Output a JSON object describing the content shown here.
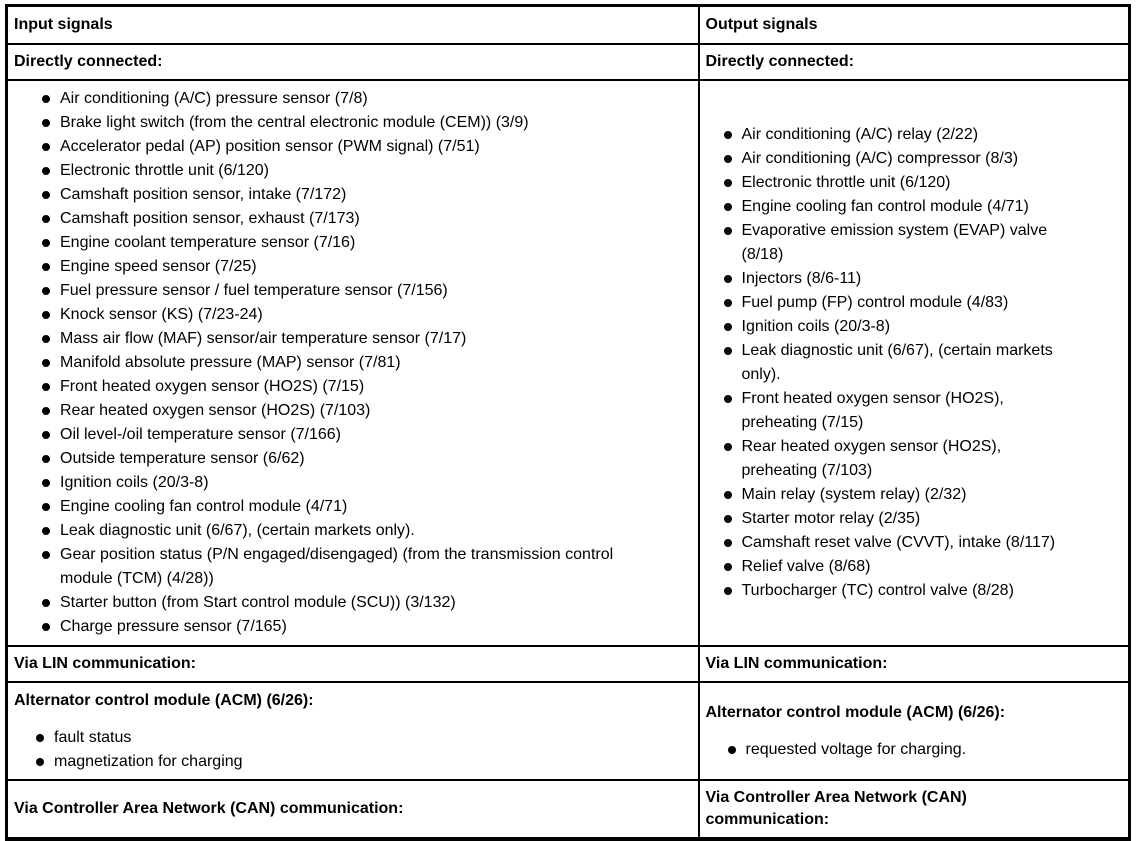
{
  "colors": {
    "background": "#ffffff",
    "text": "#000000",
    "border": "#000000"
  },
  "left": {
    "header": "Input signals",
    "direct_label": "Directly connected:",
    "direct_items": [
      "Air conditioning (A/C) pressure sensor (7/8)",
      "Brake light switch (from the central electronic module (CEM)) (3/9)",
      "Accelerator pedal (AP) position sensor (PWM signal) (7/51)",
      "Electronic throttle unit (6/120)",
      "Camshaft position sensor, intake (7/172)",
      "Camshaft position sensor, exhaust (7/173)",
      "Engine coolant temperature sensor (7/16)",
      "Engine speed sensor (7/25)",
      "Fuel pressure sensor / fuel temperature sensor (7/156)",
      "Knock sensor (KS) (7/23-24)",
      "Mass air flow (MAF) sensor/air temperature sensor (7/17)",
      "Manifold absolute pressure (MAP) sensor (7/81)",
      "Front heated oxygen sensor (HO2S) (7/15)",
      "Rear heated oxygen sensor (HO2S) (7/103)",
      "Oil level-/oil temperature sensor (7/166)",
      "Outside temperature sensor (6/62)",
      "Ignition coils (20/3-8)",
      "Engine cooling fan control module (4/71)",
      "Leak diagnostic unit (6/67), (certain markets only).",
      "Gear position status (P/N engaged/disengaged) (from the transmission control\nmodule (TCM) (4/28))",
      "Starter button (from Start control module (SCU)) (3/132)",
      "Charge pressure sensor (7/165)"
    ],
    "lin_label": "Via LIN communication:",
    "acm_heading": "Alternator control module (ACM) (6/26):",
    "acm_items": [
      "fault status",
      "magnetization for charging"
    ],
    "can_label": "Via Controller Area Network (CAN) communication:"
  },
  "right": {
    "header": "Output signals",
    "direct_label": "Directly connected:",
    "direct_items": [
      "Air conditioning (A/C) relay (2/22)",
      "Air conditioning (A/C) compressor (8/3)",
      "Electronic throttle unit (6/120)",
      "Engine cooling fan control module (4/71)",
      "Evaporative emission system (EVAP) valve\n(8/18)",
      "Injectors (8/6-11)",
      "Fuel pump (FP) control module (4/83)",
      "Ignition coils (20/3-8)",
      "Leak diagnostic unit (6/67), (certain markets\nonly).",
      "Front heated oxygen sensor (HO2S),\npreheating (7/15)",
      "Rear heated oxygen sensor (HO2S),\npreheating (7/103)",
      "Main relay (system relay) (2/32)",
      "Starter motor relay (2/35)",
      "Camshaft reset valve (CVVT), intake (8/117)",
      "Relief valve (8/68)",
      "Turbocharger (TC) control valve (8/28)"
    ],
    "lin_label": "Via LIN communication:",
    "acm_heading": "Alternator control module (ACM) (6/26):",
    "acm_items": [
      "requested voltage for charging."
    ],
    "can_label": "Via Controller Area Network (CAN)\ncommunication:"
  }
}
